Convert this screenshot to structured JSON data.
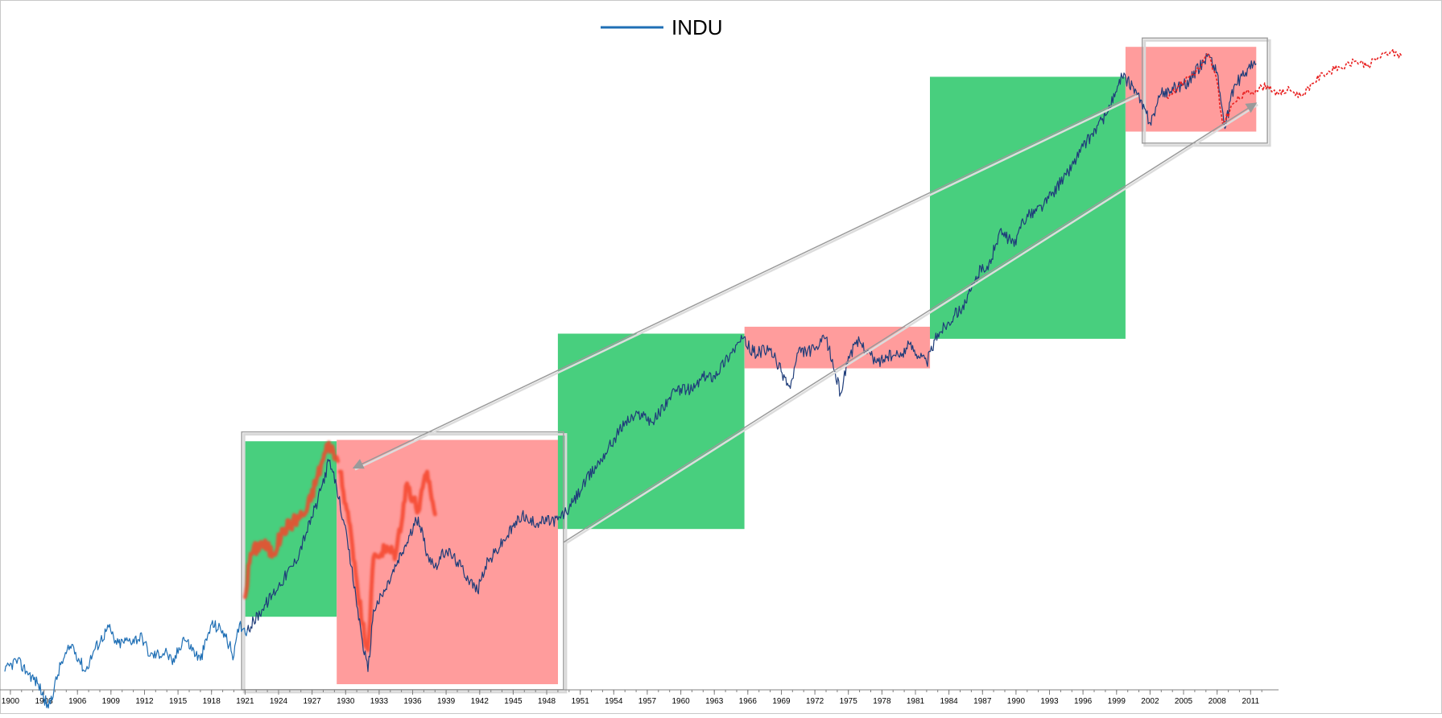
{
  "chart_data": {
    "type": "line",
    "title": "",
    "xlabel": "",
    "ylabel": "",
    "xlim": [
      1900,
      2014
    ],
    "ylim_note": "log price scale",
    "grid": false,
    "legend": {
      "placement": "top-center",
      "entries": [
        {
          "name": "INDU",
          "color": "#1f6fb5"
        }
      ]
    },
    "x_ticks": [
      "1900",
      "1903",
      "1906",
      "1909",
      "1912",
      "1915",
      "1918",
      "1921",
      "1924",
      "1927",
      "1930",
      "1933",
      "1936",
      "1939",
      "1942",
      "1945",
      "1948",
      "1951",
      "1954",
      "1957",
      "1960",
      "1963",
      "1966",
      "1969",
      "1972",
      "1975",
      "1978",
      "1981",
      "1984",
      "1987",
      "1990",
      "1993",
      "1996",
      "1999",
      "2002",
      "2005",
      "2008",
      "2011"
    ],
    "colors": {
      "series_early": "#1f6fb5",
      "series_late": "#1f3d7a",
      "bull_box": "#48cf7e",
      "bear_box": "#ff9c9c",
      "overlay": "#f5452a",
      "projection": "#e82020",
      "frame": "#a0a0a0",
      "arrow": "#9a9a9a"
    },
    "series": [
      {
        "name": "INDU",
        "x": [
          1900.0,
          1901.0,
          1902.0,
          1903.0,
          1903.9,
          1905.0,
          1906.0,
          1907.2,
          1908.0,
          1909.3,
          1910.0,
          1911.0,
          1912.3,
          1913.0,
          1914.5,
          1915.0,
          1916.0,
          1917.5,
          1918.5,
          1919.5,
          1920.5,
          1921.0,
          1921.7,
          1923.0,
          1924.5,
          1926.0,
          1927.0,
          1928.0,
          1929.0,
          1929.7,
          1930.3,
          1931.0,
          1932.0,
          1932.5,
          1933.0,
          1934.0,
          1935.0,
          1936.0,
          1937.0,
          1937.8,
          1938.5,
          1939.5,
          1940.5,
          1942.3,
          1943.0,
          1945.0,
          1946.3,
          1947.0,
          1949.5,
          1950.5,
          1952.0,
          1954.0,
          1955.5,
          1957.0,
          1958.0,
          1959.5,
          1960.5,
          1961.5,
          1962.5,
          1963.5,
          1965.0,
          1966.0,
          1967.0,
          1968.5,
          1970.3,
          1971.0,
          1972.5,
          1973.5,
          1974.8,
          1975.5,
          1976.5,
          1978.0,
          1979.0,
          1980.0,
          1981.0,
          1982.5,
          1983.5,
          1985.0,
          1986.0,
          1987.5,
          1988.0,
          1989.0,
          1990.5,
          1991.0,
          1993.0,
          1995.0,
          1996.5,
          1998.5,
          1999.5,
          2000.0,
          2001.0,
          2002.5,
          2003.5,
          2005.0,
          2006.0,
          2007.7,
          2008.5,
          2009.2,
          2010.0,
          2011.3,
          2012.0
        ],
        "y": [
          45,
          50,
          45,
          40,
          32,
          48,
          58,
          45,
          55,
          68,
          58,
          60,
          62,
          52,
          54,
          48,
          62,
          50,
          70,
          66,
          52,
          70,
          66,
          80,
          100,
          125,
          165,
          220,
          320,
          250,
          185,
          120,
          60,
          45,
          80,
          95,
          120,
          150,
          190,
          135,
          120,
          140,
          125,
          95,
          120,
          160,
          195,
          180,
          185,
          205,
          265,
          360,
          460,
          500,
          460,
          580,
          630,
          620,
          700,
          710,
          880,
          1000,
          880,
          900,
          630,
          880,
          900,
          1010,
          600,
          850,
          980,
          800,
          850,
          850,
          950,
          800,
          1050,
          1250,
          1400,
          2000,
          1900,
          2700,
          2400,
          3000,
          3500,
          4600,
          6000,
          8000,
          10000,
          11500,
          10500,
          7500,
          9800,
          10500,
          11000,
          14200,
          12000,
          7100,
          10500,
          12500,
          13000
        ]
      }
    ],
    "overlay_series": [
      {
        "x": [
          1921.5,
          1922.0,
          1923.0,
          1924.0,
          1925.0,
          1926.0,
          1927.0,
          1928.0,
          1929.0,
          1929.8
        ],
        "y": [
          90,
          135,
          150,
          135,
          170,
          185,
          200,
          280,
          380,
          320
        ]
      },
      {
        "x": [
          1930.0,
          1931.0,
          1932.0,
          1932.5,
          1933.0,
          1934.0,
          1935.0,
          1936.0,
          1937.0,
          1937.8,
          1938.5
        ],
        "y": [
          290,
          160,
          70,
          55,
          130,
          140,
          135,
          260,
          200,
          290,
          195
        ]
      }
    ],
    "projection_series": [
      {
        "x": [
          2004.0,
          2005.0,
          2006.0,
          2007.0,
          2007.7,
          2008.5,
          2009.0,
          2010.0,
          2011.0,
          2012.0,
          2013.0,
          2014.0,
          2015.0,
          2016.0,
          2017.0,
          2018.0,
          2019.0,
          2020.0,
          2021.0,
          2022.0,
          2023.0,
          2024.0,
          2025.0
        ],
        "y": [
          9500,
          10500,
          11500,
          12500,
          14200,
          11000,
          7400,
          9000,
          9800,
          10200,
          10600,
          9800,
          10200,
          9600,
          10800,
          11800,
          12300,
          12800,
          13300,
          12800,
          13800,
          14500,
          14000
        ]
      }
    ],
    "regions": [
      {
        "kind": "bull",
        "x0": 1921.5,
        "x1": 1929.7,
        "y0": 75,
        "y1": 385
      },
      {
        "kind": "bear",
        "x0": 1929.7,
        "x1": 1949.5,
        "y0": 40,
        "y1": 390
      },
      {
        "kind": "bull",
        "x0": 1949.5,
        "x1": 1966.2,
        "y0": 170,
        "y1": 1050
      },
      {
        "kind": "bear",
        "x0": 1966.2,
        "x1": 1982.8,
        "y0": 760,
        "y1": 1120
      },
      {
        "kind": "bull",
        "x0": 1982.8,
        "x1": 2000.3,
        "y0": 1000,
        "y1": 11500
      },
      {
        "kind": "bear",
        "x0": 2000.3,
        "x1": 2012.0,
        "y0": 6900,
        "y1": 15200
      }
    ],
    "frames": [
      {
        "x0": 1921.2,
        "x1": 1950.0,
        "y0": 38,
        "y1": 420
      },
      {
        "x0": 2001.8,
        "x1": 2013.0,
        "y0": 6200,
        "y1": 16500
      }
    ],
    "arrows": [
      {
        "from": [
          2001.3,
          9800
        ],
        "to": [
          1931.2,
          300
        ]
      },
      {
        "from": [
          1950.0,
          150
        ],
        "to": [
          2012.0,
          9000
        ]
      }
    ]
  }
}
